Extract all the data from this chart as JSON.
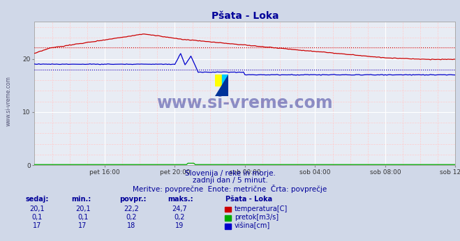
{
  "title": "Pšata - Loka",
  "title_color": "#000099",
  "bg_color": "#d0d8e8",
  "plot_bg_color": "#e8ecf4",
  "grid_color_major": "#ffffff",
  "grid_color_minor": "#ffcccc",
  "xlabel_ticks": [
    "pet 16:00",
    "pet 20:00",
    "sob 00:00",
    "sob 04:00",
    "sob 08:00",
    "sob 12:00"
  ],
  "ylabel_ticks": [
    0,
    10,
    20
  ],
  "ylim": [
    0,
    27
  ],
  "xlim": [
    0,
    288
  ],
  "tick_positions": [
    0,
    48,
    96,
    144,
    192,
    240,
    288
  ],
  "subtitle1": "Slovenija / reke in morje.",
  "subtitle2": "zadnji dan / 5 minut.",
  "subtitle3": "Meritve: povprečne  Enote: metrične  Črta: povprečje",
  "subtitle_color": "#000099",
  "watermark": "www.si-vreme.com",
  "watermark_color": "#1a1a8c",
  "station_label": "Pšata - Loka",
  "legend_items": [
    {
      "label": "temperatura[C]",
      "color": "#cc0000"
    },
    {
      "label": "pretok[m3/s]",
      "color": "#00aa00"
    },
    {
      "label": "višina[cm]",
      "color": "#0000cc"
    }
  ],
  "table_headers": [
    "sedaj:",
    "min.:",
    "povpr.:",
    "maks.:"
  ],
  "table_data": [
    [
      "20,1",
      "20,1",
      "22,2",
      "24,7"
    ],
    [
      "0,1",
      "0,1",
      "0,2",
      "0,2"
    ],
    [
      "17",
      "17",
      "18",
      "19"
    ]
  ],
  "table_color": "#000099",
  "temp_avg": 22.2,
  "flow_avg": 0.2,
  "height_avg": 18.0
}
